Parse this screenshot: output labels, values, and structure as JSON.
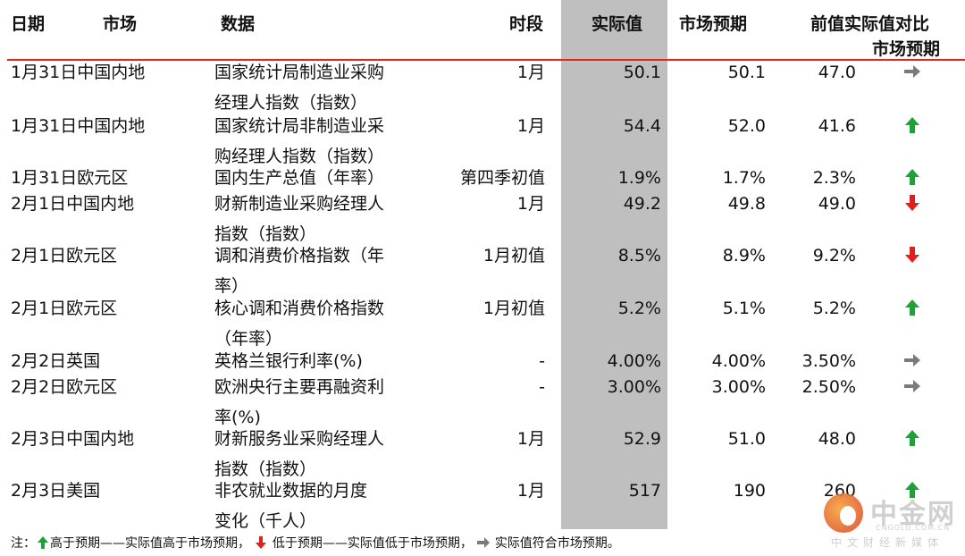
{
  "header": {
    "date": "日期",
    "market": "市场",
    "data": "数据",
    "period": "时段",
    "actual": "实际值",
    "forecast": "市场预期",
    "previous_compare_line1": "前值实际值对比",
    "previous_compare_line2": "市场预期"
  },
  "rows": [
    {
      "date_market": "1月31日中国内地",
      "data_line1": "国家统计局制造业采购",
      "data_line2": "经理人指数（指数）",
      "period": "1月",
      "actual": "50.1",
      "forecast": "50.1",
      "previous": "47.0",
      "compare": "flat"
    },
    {
      "date_market": "1月31日中国内地",
      "data_line1": "国家统计局非制造业采",
      "data_line2": "购经理人指数（指数）",
      "period": "1月",
      "actual": "54.4",
      "forecast": "52.0",
      "previous": "41.6",
      "compare": "up"
    },
    {
      "date_market": "1月31日欧元区",
      "data_line1": "国内生产总值（年率）",
      "data_line2": "",
      "period": "第四季初值",
      "actual": "1.9%",
      "forecast": "1.7%",
      "previous": "2.3%",
      "compare": "up"
    },
    {
      "date_market": "2月1日中国内地",
      "data_line1": "财新制造业采购经理人",
      "data_line2": "指数（指数）",
      "period": "1月",
      "actual": "49.2",
      "forecast": "49.8",
      "previous": "49.0",
      "compare": "down"
    },
    {
      "date_market": "2月1日欧元区",
      "data_line1": "调和消费价格指数（年",
      "data_line2": "率）",
      "period": "1月初值",
      "actual": "8.5%",
      "forecast": "8.9%",
      "previous": "9.2%",
      "compare": "down"
    },
    {
      "date_market": "2月1日欧元区",
      "data_line1": "核心调和消费价格指数",
      "data_line2": "（年率）",
      "period": "1月初值",
      "actual": "5.2%",
      "forecast": "5.1%",
      "previous": "5.2%",
      "compare": "up"
    },
    {
      "date_market": "2月2日英国",
      "data_line1": "英格兰银行利率(%)",
      "data_line2": "",
      "period": "-",
      "actual": "4.00%",
      "forecast": "4.00%",
      "previous": "3.50%",
      "compare": "flat"
    },
    {
      "date_market": "2月2日欧元区",
      "data_line1": "欧洲央行主要再融资利",
      "data_line2": "率(%)",
      "period": "-",
      "actual": "3.00%",
      "forecast": "3.00%",
      "previous": "2.50%",
      "compare": "flat"
    },
    {
      "date_market": "2月3日中国内地",
      "data_line1": "财新服务业采购经理人",
      "data_line2": "指数（指数）",
      "period": "1月",
      "actual": "52.9",
      "forecast": "51.0",
      "previous": "48.0",
      "compare": "up"
    },
    {
      "date_market": "2月3日美国",
      "data_line1": "非农就业数据的月度",
      "data_line2": "变化（千人）",
      "period": "1月",
      "actual": "517",
      "forecast": "190",
      "previous": "260",
      "compare": "up"
    }
  ],
  "note": {
    "prefix": "注：",
    "up_text": "高于预期——实际值高于市场预期，",
    "down_text": "低于预期——实际值低于市场预期，",
    "flat_text": "实际值符合市场预期。"
  },
  "watermark": {
    "brand": "中金网",
    "url": "CNGOLD.COM.CN",
    "tagline": "中文财经新媒体"
  },
  "colors": {
    "up_arrow": "#1fa13a",
    "down_arrow": "#e02020",
    "flat_arrow": "#7a7a7a",
    "header_rule": "#e8251b",
    "actual_band": "#bfbfbf"
  }
}
